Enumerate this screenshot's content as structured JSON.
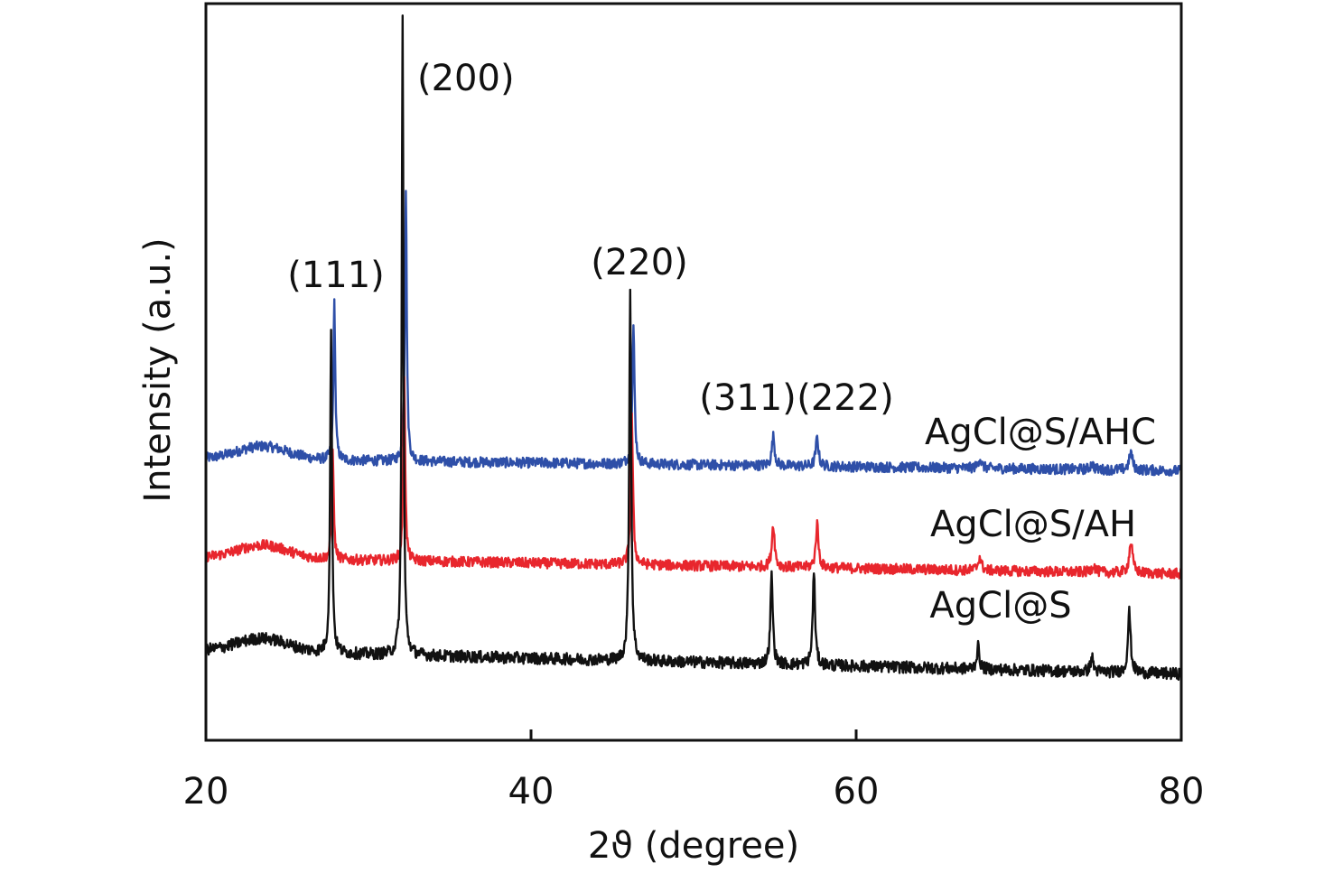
{
  "chart_data": {
    "type": "line",
    "title": "",
    "xlabel": "2ϑ (degree)",
    "ylabel": "Intensity (a.u.)",
    "xlim": [
      20,
      80
    ],
    "ylim": [
      0,
      1
    ],
    "x_ticks": [
      "20",
      "40",
      "60",
      "80"
    ],
    "grid": false,
    "legend": "none",
    "background_hump": {
      "center": 23.5,
      "width": 2.2
    },
    "peak_labels": [
      {
        "text": "(111)",
        "x": 27.8
      },
      {
        "text": "(200)",
        "x": 32.2
      },
      {
        "text": "(220)",
        "x": 46.2
      },
      {
        "text": "(311)",
        "x": 54.8
      },
      {
        "text": "(222)",
        "x": 57.5
      }
    ],
    "series": [
      {
        "name": "AgCl@S/AHC",
        "color": "#2e4fa8",
        "baseline": [
          0.382,
          0.366
        ],
        "hump": 0.018,
        "noise": 0.007,
        "peaks": [
          {
            "x": 27.9,
            "h": 0.215,
            "w": 0.1
          },
          {
            "x": 32.3,
            "h": 0.37,
            "w": 0.1
          },
          {
            "x": 46.3,
            "h": 0.185,
            "w": 0.12
          },
          {
            "x": 54.9,
            "h": 0.04,
            "w": 0.15
          },
          {
            "x": 57.6,
            "h": 0.039,
            "w": 0.15
          },
          {
            "x": 67.6,
            "h": 0.013,
            "w": 0.18
          },
          {
            "x": 74.5,
            "h": 0.008,
            "w": 0.18
          },
          {
            "x": 76.9,
            "h": 0.024,
            "w": 0.18
          }
        ]
      },
      {
        "name": "AgCl@S/AH",
        "color": "#e8262d",
        "baseline": [
          0.248,
          0.226
        ],
        "hump": 0.018,
        "noise": 0.007,
        "peaks": [
          {
            "x": 27.8,
            "h": 0.155,
            "w": 0.1
          },
          {
            "x": 32.2,
            "h": 0.255,
            "w": 0.1
          },
          {
            "x": 46.2,
            "h": 0.2,
            "w": 0.12
          },
          {
            "x": 54.9,
            "h": 0.058,
            "w": 0.15
          },
          {
            "x": 57.6,
            "h": 0.059,
            "w": 0.15
          },
          {
            "x": 67.6,
            "h": 0.018,
            "w": 0.18
          },
          {
            "x": 74.6,
            "h": 0.01,
            "w": 0.18
          },
          {
            "x": 76.9,
            "h": 0.042,
            "w": 0.18
          }
        ]
      },
      {
        "name": "AgCl@S",
        "color": "#111111",
        "baseline": [
          0.122,
          0.09
        ],
        "hump": 0.018,
        "noise": 0.008,
        "peaks": [
          {
            "x": 27.7,
            "h": 0.44,
            "w": 0.1
          },
          {
            "x": 32.1,
            "h": 0.875,
            "w": 0.09
          },
          {
            "x": 46.1,
            "h": 0.502,
            "w": 0.11
          },
          {
            "x": 54.8,
            "h": 0.12,
            "w": 0.13
          },
          {
            "x": 57.4,
            "h": 0.125,
            "w": 0.13
          },
          {
            "x": 67.5,
            "h": 0.03,
            "w": 0.15
          },
          {
            "x": 74.5,
            "h": 0.02,
            "w": 0.15
          },
          {
            "x": 76.8,
            "h": 0.083,
            "w": 0.15
          }
        ]
      }
    ]
  }
}
